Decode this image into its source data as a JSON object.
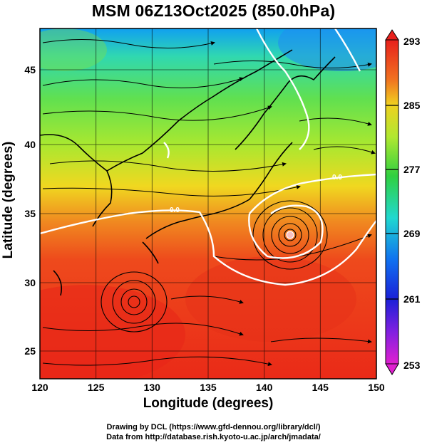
{
  "title": "MSM 06Z13Oct2025 (850.0hPa)",
  "x_axis": {
    "label": "Longitude (degrees)",
    "ticks": [
      "120",
      "125",
      "130",
      "135",
      "140",
      "145",
      "150"
    ],
    "range": [
      120,
      150
    ]
  },
  "y_axis": {
    "label": "Latitude  (degrees)",
    "ticks": [
      "25",
      "30",
      "35",
      "40",
      "45"
    ],
    "range": [
      22.5,
      48
    ]
  },
  "colorbar": {
    "ticks": [
      "293",
      "285",
      "277",
      "269",
      "261",
      "253"
    ],
    "range": [
      253,
      293
    ]
  },
  "contour_labels": [
    "0.0",
    "0.0"
  ],
  "credits": {
    "line1": "Drawing by DCL (https://www.gfd-dennou.org/library/dcl/)",
    "line2": "Data from http://database.rish.kyoto-u.ac.jp/arch/jmadata/"
  },
  "colors": {
    "cold": "#1a3cff",
    "cool": "#22d0e8",
    "mild": "#3fe03a",
    "warm": "#f0e020",
    "hot": "#ee3a1a"
  }
}
